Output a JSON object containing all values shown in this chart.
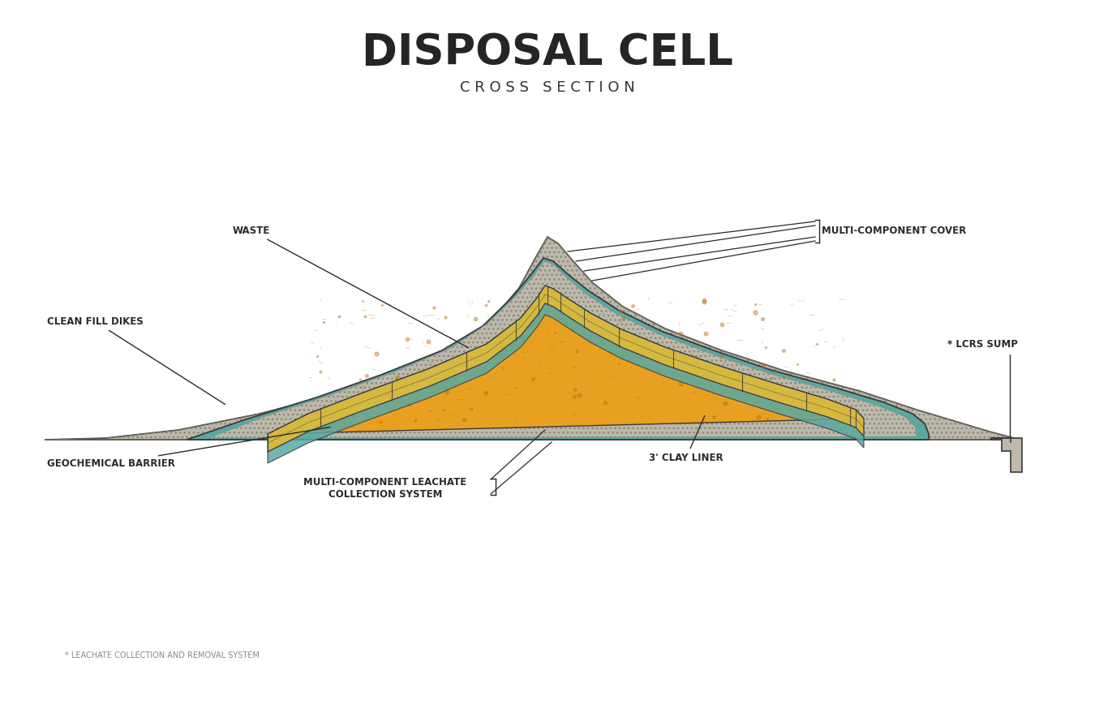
{
  "title": "DISPOSAL CELL",
  "subtitle": "C R O S S   S E C T I O N",
  "title_fontsize": 38,
  "subtitle_fontsize": 13,
  "bg_color": "#ffffff",
  "footnote": "* LEACHATE COLLECTION AND REMOVAL SYSTEM",
  "label_fontsize": 8.5,
  "label_color": "#2a2a2a",
  "colors": {
    "dike": "#bdb8ac",
    "teal": "#5aa8a2",
    "waste": "#e8a020",
    "leachate": "#d4b840",
    "dark": "#3a3a3a",
    "sump": "#c0b8a8",
    "geo": "#7ab0aa"
  }
}
